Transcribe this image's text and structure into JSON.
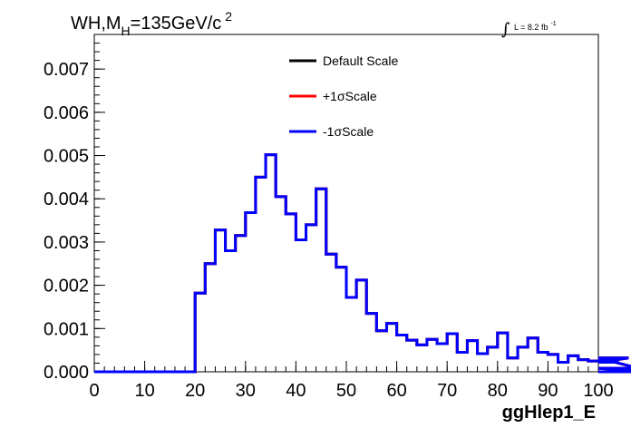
{
  "header": {
    "title_main": "WH,M",
    "title_sub": "H",
    "title_rest": "=135GeV/c",
    "title_sup": "2",
    "lumi_integral": "∫",
    "lumi_text": "L = 8.2 fb",
    "lumi_sup": "-1"
  },
  "chart_data": {
    "type": "line",
    "style": "step-histogram",
    "xlabel": "ggHlep1_E",
    "ylabel": "",
    "xlim": [
      0,
      100
    ],
    "ylim": [
      0,
      0.0078
    ],
    "xticks": [
      0,
      10,
      20,
      30,
      40,
      50,
      60,
      70,
      80,
      90,
      100
    ],
    "yticks": [
      0.0,
      0.001,
      0.002,
      0.003,
      0.004,
      0.005,
      0.006,
      0.007
    ],
    "ytick_labels": [
      "0.000",
      "0.001",
      "0.002",
      "0.003",
      "0.004",
      "0.005",
      "0.006",
      "0.007"
    ],
    "xtick_labels": [
      "0",
      "10",
      "20",
      "30",
      "40",
      "50",
      "60",
      "70",
      "80",
      "90",
      "100"
    ],
    "bin_width": 2,
    "bin_edges_start": 0,
    "legend_position": "top-center",
    "grid": false,
    "series": [
      {
        "name": "Default Scale",
        "color": "#000000",
        "values": [
          0,
          0,
          0,
          0,
          0,
          0,
          0,
          0,
          0,
          0,
          0.00182,
          0.0025,
          0.00328,
          0.0028,
          0.00315,
          0.00368,
          0.0045,
          0.00502,
          0.00405,
          0.00365,
          0.00305,
          0.0034,
          0.00423,
          0.00272,
          0.00242,
          0.00172,
          0.00212,
          0.00135,
          0.00095,
          0.00112,
          0.00085,
          0.00073,
          0.00062,
          0.00075,
          0.00065,
          0.00088,
          0.00045,
          0.00072,
          0.00042,
          0.00057,
          0.0009,
          0.00032,
          0.00057,
          0.00078,
          0.00045,
          0.0004,
          0.00022,
          0.00037,
          0.00028,
          0.00025,
          0.00025,
          0.00022,
          0.00022,
          0.00032,
          8e-05,
          0.0
        ]
      },
      {
        "name": "+1σScale",
        "color": "#ff0000",
        "values": [
          0,
          0,
          0,
          0,
          0,
          0,
          0,
          0,
          0,
          0,
          0.00182,
          0.0025,
          0.00328,
          0.0028,
          0.00315,
          0.00368,
          0.0045,
          0.00502,
          0.00405,
          0.00365,
          0.00305,
          0.0034,
          0.00423,
          0.00272,
          0.00242,
          0.00172,
          0.00212,
          0.00135,
          0.00095,
          0.00112,
          0.00085,
          0.00073,
          0.00062,
          0.00075,
          0.00065,
          0.00088,
          0.00045,
          0.00072,
          0.00042,
          0.00057,
          0.0009,
          0.00032,
          0.00057,
          0.00078,
          0.00045,
          0.0004,
          0.00022,
          0.00037,
          0.00028,
          0.00025,
          0.00025,
          0.00022,
          0.00022,
          0.00032,
          8e-05,
          0.0
        ]
      },
      {
        "name": "-1σScale",
        "color": "#0000ff",
        "values": [
          0,
          0,
          0,
          0,
          0,
          0,
          0,
          0,
          0,
          0,
          0.00182,
          0.0025,
          0.00328,
          0.0028,
          0.00315,
          0.00368,
          0.0045,
          0.00502,
          0.00405,
          0.00365,
          0.00305,
          0.0034,
          0.00423,
          0.00272,
          0.00242,
          0.00172,
          0.00212,
          0.00135,
          0.00095,
          0.00112,
          0.00085,
          0.00073,
          0.00062,
          0.00075,
          0.00065,
          0.00088,
          0.00045,
          0.00072,
          0.00042,
          0.00057,
          0.0009,
          0.00032,
          0.00057,
          0.00078,
          0.00045,
          0.0004,
          0.00022,
          0.00037,
          0.00028,
          0.00025,
          0.00025,
          0.00022,
          0.00022,
          0.00032,
          8e-05,
          0.0
        ]
      }
    ]
  }
}
